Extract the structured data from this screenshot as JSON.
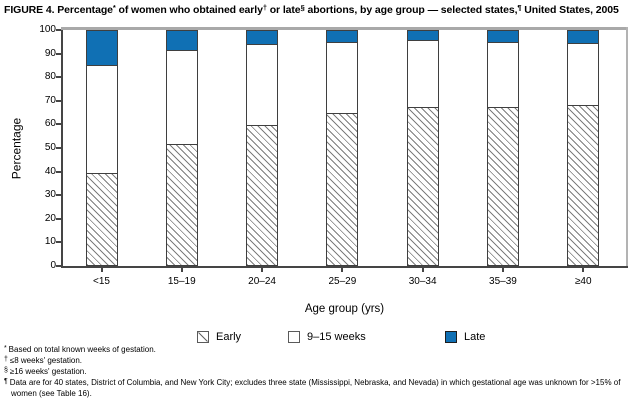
{
  "title_parts": [
    {
      "text": "FIGURE 4. Percentage"
    },
    {
      "text": "*",
      "sup": true
    },
    {
      "text": " of women who obtained early"
    },
    {
      "text": "†",
      "sup": true
    },
    {
      "text": " or late"
    },
    {
      "text": "§",
      "sup": true
    },
    {
      "text": " abortions, by age group — selected states,"
    },
    {
      "text": "¶",
      "sup": true
    },
    {
      "text": " United States, 2005"
    }
  ],
  "chart_data": {
    "type": "bar",
    "stacked": true,
    "title": "FIGURE 4. Percentage* of women who obtained early† or late§ abortions, by age group — selected states,¶ United States, 2005",
    "categories": [
      "<15",
      "15–19",
      "20–24",
      "25–29",
      "30–34",
      "35–39",
      "≥40"
    ],
    "series": [
      {
        "name": "Early",
        "style": "hatched",
        "values": [
          39.5,
          52,
          60,
          65,
          67.5,
          67.5,
          68.5
        ]
      },
      {
        "name": "9–15 weeks",
        "style": "white",
        "values": [
          46,
          40,
          34.5,
          30.5,
          28.5,
          27.7,
          26.3
        ]
      },
      {
        "name": "Late",
        "style": "blue",
        "values": [
          14.5,
          8,
          5.5,
          4.5,
          4,
          4.8,
          5.2
        ]
      }
    ],
    "xlabel": "Age group (yrs)",
    "ylabel": "Percentage",
    "ylim": [
      0,
      100
    ],
    "yticks": [
      0,
      10,
      20,
      30,
      40,
      50,
      60,
      70,
      80,
      90,
      100
    ],
    "grid": false,
    "legend_position": "bottom"
  },
  "legend": {
    "items": [
      {
        "label": "Early",
        "swatch": "hatched"
      },
      {
        "label": "9–15 weeks",
        "swatch": "white"
      },
      {
        "label": "Late",
        "swatch": "blue"
      }
    ]
  },
  "footnotes": [
    {
      "marker": "*",
      "text": "Based on total known weeks of gestation."
    },
    {
      "marker": "†",
      "text": "≤8 weeks' gestation."
    },
    {
      "marker": "§",
      "text": "≥16 weeks' gestation."
    },
    {
      "marker": "¶",
      "text": "Data are for 40 states, District of Columbia, and New York City; excludes three state (Mississippi, Nebraska, and Nevada) in which gestational age was unknown for >15% of women (see Table 16)."
    }
  ],
  "colors": {
    "late_blue": "#1070b4",
    "hatch_line": "#7d7d7d",
    "bar_border": "#3f3f3f",
    "axis": "#454545",
    "frame_gray": "#a9a9a9"
  }
}
